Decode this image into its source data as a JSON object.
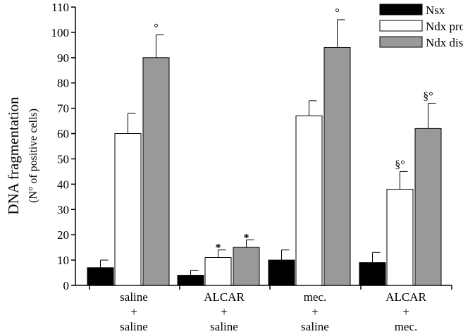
{
  "chart_data": {
    "type": "bar",
    "ylabel": "DNA fragmentation",
    "ylabel_sub": "(N° of positive cells)",
    "ylim": [
      0,
      110
    ],
    "yticks": [
      0,
      10,
      20,
      30,
      40,
      50,
      60,
      70,
      80,
      90,
      100,
      110
    ],
    "categories": [
      [
        "saline",
        "+",
        "saline"
      ],
      [
        "ALCAR",
        "+",
        "saline"
      ],
      [
        "mec.",
        "+",
        "saline"
      ],
      [
        "ALCAR",
        "+",
        "mec."
      ]
    ],
    "series": [
      {
        "name": "Nsx",
        "color": "#000000",
        "values": [
          7,
          4,
          10,
          9
        ],
        "errors": [
          3,
          2,
          4,
          4
        ],
        "annotations": [
          "",
          "",
          "",
          ""
        ]
      },
      {
        "name": "Ndx prox",
        "color": "#ffffff",
        "values": [
          60,
          11,
          67,
          38
        ],
        "errors": [
          8,
          3,
          6,
          7
        ],
        "annotations": [
          "",
          "*",
          "",
          "§°"
        ]
      },
      {
        "name": "Ndx dist",
        "color": "#999999",
        "values": [
          90,
          15,
          94,
          62
        ],
        "errors": [
          9,
          3,
          11,
          10
        ],
        "annotations": [
          "°",
          "*",
          "°",
          "§°"
        ]
      }
    ],
    "legend_position": "top-right",
    "grid": false
  }
}
